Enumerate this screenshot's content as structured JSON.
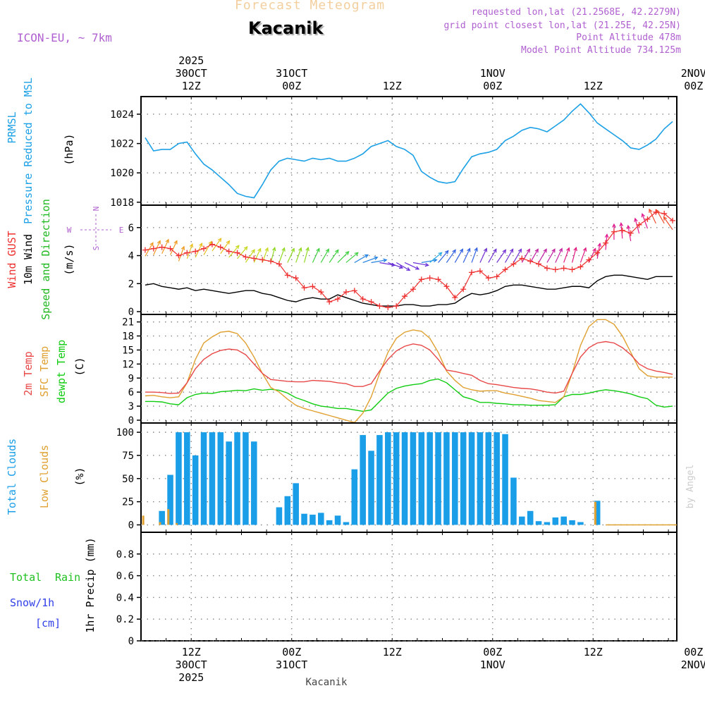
{
  "header": {
    "product": "Forecast Meteogram",
    "location": "Kacanik",
    "model": "ICON-EU, ~ 7km",
    "requested": "requested lon,lat (21.2568E, 42.2279N)",
    "gridpoint": "grid point closest lon,lat (21.25E, 42.25N)",
    "altitude": "Point Altitude 478m",
    "model_altitude": "Model Point Altitude 734.125m",
    "credit": "by Angel",
    "footer": "Kacanik"
  },
  "time_axis": {
    "hours": 64,
    "start_label": "2025-10-30 06Z",
    "top_labels": [
      {
        "hour": 6,
        "lines": [
          "2025",
          "30OCT",
          "12Z"
        ]
      },
      {
        "hour": 18,
        "lines": [
          "31OCT",
          "00Z"
        ]
      },
      {
        "hour": 30,
        "lines": [
          "12Z"
        ]
      },
      {
        "hour": 42,
        "lines": [
          "1NOV",
          "00Z"
        ]
      },
      {
        "hour": 54,
        "lines": [
          "12Z"
        ]
      },
      {
        "hour": 66,
        "lines": [
          "2NOV",
          "00Z"
        ]
      }
    ],
    "bottom_labels": [
      {
        "hour": 6,
        "lines": [
          "12Z",
          "30OCT",
          "2025"
        ]
      },
      {
        "hour": 18,
        "lines": [
          "00Z",
          "31OCT"
        ]
      },
      {
        "hour": 30,
        "lines": [
          "12Z"
        ]
      },
      {
        "hour": 42,
        "lines": [
          "00Z",
          "1NOV"
        ]
      },
      {
        "hour": 54,
        "lines": [
          "12Z"
        ]
      },
      {
        "hour": 66,
        "lines": [
          "00Z",
          "2NOV"
        ]
      }
    ]
  },
  "colors": {
    "pressure": "#1ca0e6",
    "gust": "#ee3030",
    "wind": "#000000",
    "wind_dir_label": "#20b820",
    "temp2m": "#e84848",
    "sfc": "#e0a030",
    "dewpt": "#10cc10",
    "clouds_total": "#1a9ee8",
    "clouds_low": "#e0a030",
    "rain": "#20c020",
    "snow": "#3040e8",
    "header_purple": "#b060d0",
    "title_orange": "#f3cf9e",
    "grid": "#888888"
  },
  "chart_data": [
    {
      "type": "line",
      "name": "pressure",
      "ylabel": "(hPa)",
      "label_lines": [
        "PRMSL",
        "Pressure Reduced to MSL"
      ],
      "ylim": [
        1017.8,
        1025.2
      ],
      "yticks": [
        1018,
        1020,
        1022,
        1024
      ],
      "series": [
        {
          "name": "PRMSL",
          "key": "pressure",
          "values": [
            1022.4,
            1021.5,
            1021.6,
            1021.6,
            1022.0,
            1022.1,
            1021.3,
            1020.6,
            1020.2,
            1019.7,
            1019.2,
            1018.6,
            1018.4,
            1018.3,
            1019.2,
            1020.2,
            1020.8,
            1021.0,
            1020.9,
            1020.8,
            1021.0,
            1020.9,
            1021.0,
            1020.8,
            1020.8,
            1021.0,
            1021.3,
            1021.8,
            1022.0,
            1022.2,
            1021.8,
            1021.6,
            1021.2,
            1020.1,
            1019.7,
            1019.4,
            1019.3,
            1019.4,
            1020.3,
            1021.1,
            1021.3,
            1021.4,
            1021.6,
            1022.2,
            1022.5,
            1022.9,
            1023.1,
            1023.0,
            1022.8,
            1023.2,
            1023.6,
            1024.2,
            1024.7,
            1024.1,
            1023.4,
            1023.0,
            1022.6,
            1022.2,
            1021.7,
            1021.6,
            1021.9,
            1022.3,
            1023.0,
            1023.5
          ]
        }
      ]
    },
    {
      "type": "line",
      "name": "wind",
      "ylabel": "(m/s)",
      "label_lines": [
        "Wind GUST",
        "10m Wind",
        "Speed and Direction"
      ],
      "compass": [
        "N",
        "E",
        "S",
        "W"
      ],
      "ylim": [
        -0.2,
        7.6
      ],
      "yticks": [
        0,
        2,
        4,
        6
      ],
      "series": [
        {
          "name": "Wind GUST",
          "key": "gust",
          "marker": "plus",
          "values": [
            4.4,
            4.5,
            4.6,
            4.5,
            4.0,
            4.2,
            4.3,
            4.5,
            4.8,
            4.6,
            4.3,
            4.2,
            3.9,
            3.8,
            3.7,
            3.6,
            3.4,
            2.6,
            2.4,
            1.7,
            1.8,
            1.4,
            0.7,
            0.9,
            1.4,
            1.5,
            0.9,
            0.7,
            0.4,
            0.3,
            0.4,
            1.1,
            1.6,
            2.3,
            2.4,
            2.3,
            1.8,
            1.0,
            1.6,
            2.8,
            2.9,
            2.4,
            2.5,
            3.0,
            3.4,
            3.8,
            3.6,
            3.4,
            3.1,
            3.0,
            3.1,
            3.0,
            3.2,
            3.7,
            4.2,
            4.9,
            5.7,
            5.8,
            5.6,
            6.2,
            6.6,
            7.1,
            7.0,
            6.5
          ]
        },
        {
          "name": "10m Wind",
          "key": "wind",
          "values": [
            1.9,
            2.0,
            1.8,
            1.7,
            1.6,
            1.7,
            1.5,
            1.6,
            1.5,
            1.4,
            1.3,
            1.4,
            1.5,
            1.5,
            1.3,
            1.2,
            1.0,
            0.8,
            0.7,
            0.9,
            1.0,
            0.9,
            0.9,
            1.2,
            1.0,
            0.8,
            0.6,
            0.5,
            0.4,
            0.4,
            0.4,
            0.5,
            0.5,
            0.4,
            0.4,
            0.5,
            0.5,
            0.6,
            1.0,
            1.3,
            1.2,
            1.3,
            1.5,
            1.8,
            1.9,
            1.9,
            1.8,
            1.7,
            1.6,
            1.6,
            1.7,
            1.8,
            1.8,
            1.7,
            2.2,
            2.5,
            2.6,
            2.6,
            2.5,
            2.4,
            2.3,
            2.5,
            2.5,
            2.5
          ]
        }
      ],
      "wind_dir_deg": [
        30,
        25,
        25,
        25,
        20,
        20,
        25,
        30,
        35,
        35,
        40,
        40,
        35,
        25,
        20,
        15,
        20,
        25,
        20,
        15,
        25,
        30,
        35,
        45,
        50,
        60,
        70,
        80,
        100,
        110,
        120,
        115,
        100,
        80,
        50,
        40,
        35,
        30,
        25,
        20,
        25,
        30,
        35,
        30,
        30,
        30,
        30,
        30,
        30,
        25,
        20,
        15,
        20,
        25,
        10,
        5,
        0,
        355,
        350,
        345,
        340,
        335,
        330,
        325
      ]
    },
    {
      "type": "line",
      "name": "temperature",
      "ylabel": "(C)",
      "label_lines": [
        "2m Temp",
        "SFC Temp",
        "dewpt Temp"
      ],
      "ylim": [
        -0.6,
        22.6
      ],
      "yticks": [
        0,
        3,
        6,
        9,
        12,
        15,
        18,
        21
      ],
      "series": [
        {
          "name": "2m Temp",
          "key": "temp2m",
          "values": [
            6.0,
            6.0,
            5.9,
            5.7,
            5.8,
            8.0,
            11.0,
            13.0,
            14.2,
            14.9,
            15.2,
            15.0,
            14.0,
            12.0,
            10.0,
            8.7,
            8.5,
            8.3,
            8.2,
            8.2,
            8.5,
            8.4,
            8.3,
            8.0,
            7.8,
            7.2,
            7.2,
            7.8,
            10.5,
            13.0,
            14.8,
            15.8,
            16.3,
            16.0,
            15.0,
            13.0,
            10.7,
            10.4,
            10.0,
            9.6,
            8.5,
            7.8,
            7.6,
            7.3,
            7.0,
            6.8,
            6.7,
            6.4,
            6.0,
            5.8,
            6.2,
            10.0,
            13.5,
            15.5,
            16.5,
            16.8,
            16.5,
            15.5,
            14.0,
            12.0,
            11.0,
            10.5,
            10.2,
            9.8
          ]
        },
        {
          "name": "SFC Temp",
          "key": "sfc",
          "values": [
            5.2,
            5.3,
            5.0,
            4.8,
            5.0,
            8.0,
            13.0,
            16.5,
            17.8,
            18.8,
            19.0,
            18.5,
            16.5,
            13.5,
            10.0,
            7.0,
            6.0,
            4.5,
            3.2,
            2.5,
            2.0,
            1.5,
            1.0,
            0.5,
            0.0,
            -0.5,
            1.5,
            5.0,
            10.0,
            14.5,
            17.5,
            18.8,
            19.3,
            19.0,
            17.5,
            14.5,
            10.5,
            8.5,
            7.0,
            6.5,
            6.2,
            6.3,
            6.3,
            5.8,
            5.5,
            5.1,
            4.7,
            4.2,
            4.0,
            3.8,
            5.0,
            10.0,
            16.0,
            20.0,
            21.5,
            21.5,
            20.5,
            18.0,
            14.5,
            11.0,
            9.5,
            9.2,
            9.2,
            9.2
          ]
        },
        {
          "name": "dewpt Temp",
          "key": "dewpt",
          "values": [
            4.0,
            4.0,
            3.9,
            3.5,
            3.3,
            4.8,
            5.5,
            5.8,
            5.7,
            6.1,
            6.2,
            6.4,
            6.3,
            6.7,
            6.4,
            6.6,
            6.4,
            5.8,
            4.8,
            4.2,
            3.5,
            3.0,
            2.8,
            2.5,
            2.5,
            2.2,
            1.9,
            2.2,
            4.0,
            5.8,
            6.8,
            7.3,
            7.6,
            7.8,
            8.5,
            8.8,
            8.0,
            6.5,
            5.0,
            4.5,
            3.8,
            3.8,
            3.6,
            3.5,
            3.3,
            3.3,
            3.2,
            3.2,
            3.2,
            3.3,
            5.0,
            5.5,
            5.5,
            5.8,
            6.2,
            6.5,
            6.3,
            6.0,
            5.6,
            5.0,
            4.6,
            3.2,
            2.8,
            3.0
          ]
        }
      ]
    },
    {
      "type": "bar",
      "name": "clouds",
      "ylabel": "(%)",
      "label_lines": [
        "Total Clouds",
        "Low Clouds"
      ],
      "ylim": [
        -8,
        110
      ],
      "yticks": [
        0,
        25,
        50,
        75,
        100
      ],
      "series": [
        {
          "name": "Total Clouds",
          "key": "clouds_total",
          "values": [
            0,
            0,
            15,
            54,
            100,
            100,
            75,
            100,
            100,
            100,
            90,
            100,
            100,
            90,
            0,
            0,
            19,
            31,
            45,
            12,
            11,
            13,
            5,
            10,
            3,
            60,
            97,
            80,
            97,
            100,
            100,
            100,
            100,
            100,
            100,
            100,
            100,
            100,
            100,
            100,
            100,
            100,
            100,
            98,
            51,
            9,
            15,
            4,
            3,
            8,
            9,
            5,
            3,
            0,
            26,
            0,
            0,
            0,
            0,
            0,
            0,
            0,
            0,
            0
          ]
        },
        {
          "name": "Low Clouds",
          "key": "clouds_low",
          "values": [
            10,
            0,
            3,
            17,
            2,
            0,
            0,
            0,
            0,
            0,
            0,
            0,
            0,
            0,
            0,
            0,
            0,
            0,
            0,
            0,
            0,
            0,
            0,
            0,
            0,
            0,
            0,
            0,
            0,
            0,
            0,
            0,
            0,
            0,
            0,
            0,
            0,
            0,
            0,
            0,
            0,
            0,
            0,
            0,
            0,
            0,
            0,
            0,
            0,
            0,
            0,
            0,
            0,
            0,
            25,
            0,
            0,
            0,
            0,
            0,
            0,
            0,
            0,
            0
          ]
        }
      ]
    },
    {
      "type": "line",
      "name": "precip",
      "ylabel": "1hr Precip (mm)",
      "label_lines": [
        "Total Rain",
        "Snow/1h",
        "[cm]"
      ],
      "ylim": [
        0,
        1.0
      ],
      "yticks": [
        0,
        0.2,
        0.4,
        0.6,
        0.8
      ],
      "series": [
        {
          "name": "Total Rain",
          "key": "rain",
          "values": [
            0,
            0,
            0,
            0,
            0,
            0,
            0,
            0,
            0,
            0,
            0,
            0,
            0,
            0,
            0,
            0,
            0,
            0,
            0,
            0,
            0,
            0,
            0,
            0,
            0,
            0,
            0,
            0,
            0,
            0,
            0,
            0,
            0,
            0,
            0,
            0,
            0,
            0,
            0,
            0,
            0,
            0,
            0,
            0,
            0,
            0,
            0,
            0,
            0,
            0,
            0,
            0,
            0,
            0,
            0,
            0,
            0,
            0,
            0,
            0,
            0,
            0,
            0,
            0
          ]
        },
        {
          "name": "Snow/1h",
          "key": "snow",
          "values": [
            0,
            0,
            0,
            0,
            0,
            0,
            0,
            0,
            0,
            0,
            0,
            0,
            0,
            0,
            0,
            0,
            0,
            0,
            0,
            0,
            0,
            0,
            0,
            0,
            0,
            0,
            0,
            0,
            0,
            0,
            0,
            0,
            0,
            0,
            0,
            0,
            0,
            0,
            0,
            0,
            0,
            0,
            0,
            0,
            0,
            0,
            0,
            0,
            0,
            0,
            0,
            0,
            0,
            0,
            0,
            0,
            0,
            0,
            0,
            0,
            0,
            0,
            0,
            0
          ]
        }
      ]
    }
  ]
}
